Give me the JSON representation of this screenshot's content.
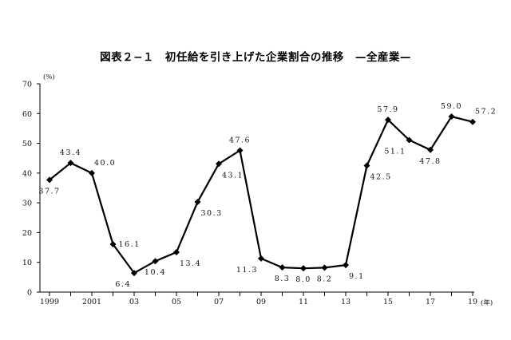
{
  "chart_data": {
    "type": "line",
    "title": "図表２−１　初任給を引き上げた企業割合の推移　—全産業—",
    "ylabel": "(%)",
    "xunit": "(年)",
    "ylim": [
      0,
      70
    ],
    "yticks": [
      0,
      10,
      20,
      30,
      40,
      50,
      60,
      70
    ],
    "xlim": [
      1999,
      2019
    ],
    "xtick_labels": [
      {
        "x": 1999,
        "label": "1999"
      },
      {
        "x": 2001,
        "label": "2001"
      },
      {
        "x": 2003,
        "label": "03"
      },
      {
        "x": 2005,
        "label": "05"
      },
      {
        "x": 2007,
        "label": "07"
      },
      {
        "x": 2009,
        "label": "09"
      },
      {
        "x": 2011,
        "label": "11"
      },
      {
        "x": 2013,
        "label": "13"
      },
      {
        "x": 2015,
        "label": "15"
      },
      {
        "x": 2017,
        "label": "17"
      },
      {
        "x": 2019,
        "label": "19"
      }
    ],
    "grid": false,
    "series": [
      {
        "color": "#000000",
        "marker": "diamond",
        "points": [
          {
            "x": 1999,
            "y": 37.7,
            "label": "37.7",
            "pos": "below"
          },
          {
            "x": 2000,
            "y": 43.4,
            "label": "43.4",
            "pos": "above"
          },
          {
            "x": 2001,
            "y": 40.0,
            "label": "40.0",
            "pos": "above-right"
          },
          {
            "x": 2002,
            "y": 16.1,
            "label": "16.1",
            "pos": "right"
          },
          {
            "x": 2003,
            "y": 6.4,
            "label": "6.4",
            "pos": "below-left"
          },
          {
            "x": 2004,
            "y": 10.4,
            "label": "10.4",
            "pos": "below"
          },
          {
            "x": 2005,
            "y": 13.4,
            "label": "13.4",
            "pos": "below-right"
          },
          {
            "x": 2006,
            "y": 30.3,
            "label": "30.3",
            "pos": "below-right"
          },
          {
            "x": 2007,
            "y": 43.1,
            "label": "43.1",
            "pos": "below-right"
          },
          {
            "x": 2008,
            "y": 47.6,
            "label": "47.6",
            "pos": "above"
          },
          {
            "x": 2009,
            "y": 11.3,
            "label": "11.3",
            "pos": "below-left"
          },
          {
            "x": 2010,
            "y": 8.3,
            "label": "8.3",
            "pos": "below"
          },
          {
            "x": 2011,
            "y": 8.0,
            "label": "8.0",
            "pos": "below"
          },
          {
            "x": 2012,
            "y": 8.2,
            "label": "8.2",
            "pos": "below"
          },
          {
            "x": 2013,
            "y": 9.1,
            "label": "9.1",
            "pos": "below-right"
          },
          {
            "x": 2014,
            "y": 42.5,
            "label": "42.5",
            "pos": "below-right"
          },
          {
            "x": 2015,
            "y": 57.9,
            "label": "57.9",
            "pos": "above"
          },
          {
            "x": 2016,
            "y": 51.1,
            "label": "51.1",
            "pos": "below-left"
          },
          {
            "x": 2017,
            "y": 47.8,
            "label": "47.8",
            "pos": "below"
          },
          {
            "x": 2018,
            "y": 59.0,
            "label": "59.0",
            "pos": "above"
          },
          {
            "x": 2019,
            "y": 57.2,
            "label": "57.2",
            "pos": "above-right"
          }
        ]
      }
    ]
  }
}
